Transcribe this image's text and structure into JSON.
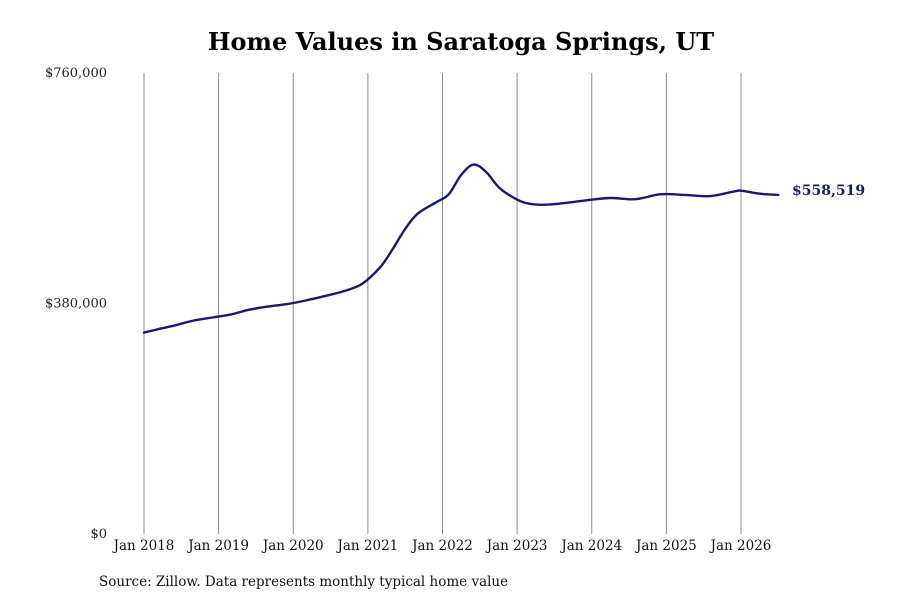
{
  "chart_data": {
    "type": "line",
    "title": "Home Values in Saratoga Springs, UT",
    "xlabel": "",
    "ylabel": "",
    "ylim": [
      0,
      760000
    ],
    "y_ticks": [
      0,
      380000,
      760000
    ],
    "y_tick_labels": [
      "$0",
      "$380,000",
      "$760,000"
    ],
    "x_ticks": [
      "2018-01",
      "2019-01",
      "2020-01",
      "2021-01",
      "2022-01",
      "2023-01",
      "2024-01",
      "2025-01",
      "2026-01"
    ],
    "x_tick_labels": [
      "Jan 2018",
      "Jan 2019",
      "Jan 2020",
      "Jan 2021",
      "Jan 2022",
      "Jan 2023",
      "Jan 2024",
      "Jan 2025",
      "Jan 2026"
    ],
    "grid": "vertical",
    "line_color": "#191970",
    "end_label": "$558,519",
    "x": [
      "2018-01",
      "2018-03",
      "2018-06",
      "2018-09",
      "2018-12",
      "2019-03",
      "2019-06",
      "2019-09",
      "2019-12",
      "2020-03",
      "2020-06",
      "2020-09",
      "2020-12",
      "2021-03",
      "2021-05",
      "2021-07",
      "2021-09",
      "2021-12",
      "2022-02",
      "2022-04",
      "2022-06",
      "2022-08",
      "2022-10",
      "2022-12",
      "2023-02",
      "2023-04",
      "2023-06",
      "2023-09",
      "2023-12",
      "2024-04",
      "2024-08",
      "2024-12",
      "2025-04",
      "2025-08",
      "2025-12",
      "2026-01",
      "2026-04",
      "2026-07"
    ],
    "series": [
      {
        "values": [
          332000,
          337000,
          344000,
          352000,
          357000,
          362000,
          370000,
          375000,
          379000,
          385000,
          392000,
          400000,
          412000,
          440000,
          470000,
          503000,
          528000,
          547000,
          560000,
          592000,
          609000,
          597000,
          572000,
          557000,
          547000,
          543000,
          543000,
          546000,
          550000,
          554000,
          552000,
          560000,
          559000,
          557000,
          565000,
          566000,
          561000,
          559000
        ]
      }
    ]
  },
  "footer": {
    "source": "Source: Zillow. Data represents monthly typical home value"
  }
}
